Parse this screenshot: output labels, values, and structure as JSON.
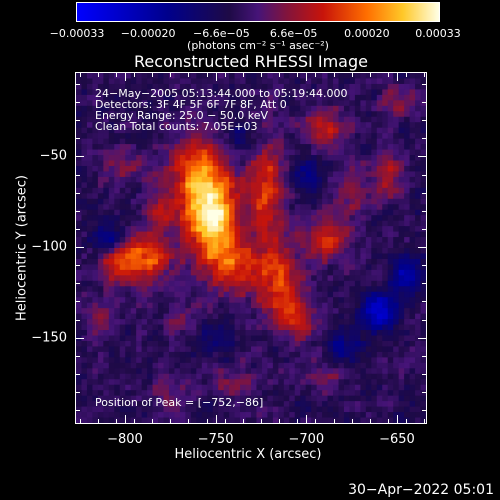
{
  "chart_data": {
    "type": "heatmap",
    "title": "Reconstructed RHESSI Image",
    "xlabel": "Heliocentric X (arcsec)",
    "ylabel": "Heliocentric Y (arcsec)",
    "xlim": [
      -827,
      -634
    ],
    "ylim": [
      -197,
      -4
    ],
    "xticks": [
      -800,
      -750,
      -700,
      -650
    ],
    "xtick_labels": [
      "−800",
      "−750",
      "−700",
      "−650"
    ],
    "yticks": [
      -50,
      -100,
      -150
    ],
    "ytick_labels": [
      "−50",
      "−100",
      "−150"
    ],
    "colorbar": {
      "range": [
        -0.00033,
        0.00033
      ],
      "tick_values": [
        -0.00033,
        -0.0002,
        -6.6e-05,
        6.6e-05,
        0.0002,
        0.00033
      ],
      "tick_labels": [
        "−0.00033",
        "−0.00020",
        "−6.6e−05",
        "6.6e−05",
        "0.00020",
        "0.00033"
      ],
      "unit_label": "(photons cm⁻² s⁻¹ asec⁻²)"
    },
    "annotations": [
      "24−May−2005 05:13:44.000 to 05:19:44.000",
      "Detectors: 3F 4F 5F 6F 7F 8F, Att 0",
      "Energy Range: 25.0 − 50.0 keV",
      "Clean    Total counts: 7.05E+03"
    ],
    "peak_label": "Position of Peak = [−752,−86]",
    "peak_position": [
      -752,
      -86
    ],
    "blobs": [
      {
        "x": -752,
        "y": -86,
        "sx": 10,
        "sy": 16,
        "amp": 0.00033
      },
      {
        "x": -760,
        "y": -60,
        "sx": 12,
        "sy": 14,
        "amp": 0.00022
      },
      {
        "x": -740,
        "y": -110,
        "sx": 10,
        "sy": 10,
        "amp": 0.00016
      },
      {
        "x": -788,
        "y": -105,
        "sx": 10,
        "sy": 9,
        "amp": 0.00022
      },
      {
        "x": -805,
        "y": -110,
        "sx": 7,
        "sy": 7,
        "amp": 0.00014
      },
      {
        "x": -780,
        "y": -80,
        "sx": 7,
        "sy": 6,
        "amp": 0.0001
      },
      {
        "x": -722,
        "y": -70,
        "sx": 7,
        "sy": 22,
        "amp": 0.00018
      },
      {
        "x": -715,
        "y": -120,
        "sx": 9,
        "sy": 14,
        "amp": 0.00018
      },
      {
        "x": -705,
        "y": -140,
        "sx": 8,
        "sy": 8,
        "amp": 0.00013
      },
      {
        "x": -690,
        "y": -95,
        "sx": 9,
        "sy": 9,
        "amp": 0.00016
      },
      {
        "x": -690,
        "y": -35,
        "sx": 8,
        "sy": 8,
        "amp": 0.00015
      },
      {
        "x": -675,
        "y": -70,
        "sx": 6,
        "sy": 10,
        "amp": 0.0001
      },
      {
        "x": -655,
        "y": -60,
        "sx": 6,
        "sy": 9,
        "amp": 0.00013
      },
      {
        "x": -650,
        "y": -20,
        "sx": 6,
        "sy": 6,
        "amp": 0.00012
      },
      {
        "x": -800,
        "y": -55,
        "sx": 9,
        "sy": 6,
        "amp": 8e-05
      },
      {
        "x": -815,
        "y": -140,
        "sx": 7,
        "sy": 7,
        "amp": 8e-05
      },
      {
        "x": -775,
        "y": -180,
        "sx": 7,
        "sy": 6,
        "amp": 7e-05
      },
      {
        "x": -740,
        "y": -175,
        "sx": 9,
        "sy": 6,
        "amp": 9e-05
      },
      {
        "x": -690,
        "y": -170,
        "sx": 9,
        "sy": 8,
        "amp": 7e-05
      },
      {
        "x": -770,
        "y": -140,
        "sx": 8,
        "sy": 6,
        "amp": 6e-05
      },
      {
        "x": -660,
        "y": -135,
        "sx": 7,
        "sy": 7,
        "amp": -0.00022
      },
      {
        "x": -645,
        "y": -115,
        "sx": 6,
        "sy": 8,
        "amp": -0.00016
      },
      {
        "x": -810,
        "y": -95,
        "sx": 7,
        "sy": 7,
        "amp": -0.00012
      },
      {
        "x": -700,
        "y": -60,
        "sx": 6,
        "sy": 8,
        "amp": -0.0001
      },
      {
        "x": -680,
        "y": -155,
        "sx": 7,
        "sy": 6,
        "amp": -0.00012
      },
      {
        "x": -750,
        "y": -150,
        "sx": 8,
        "sy": 6,
        "amp": -8e-05
      },
      {
        "x": -735,
        "y": -40,
        "sx": 7,
        "sy": 7,
        "amp": -8e-05
      }
    ]
  },
  "timestamp": "30−Apr−2022 05:01"
}
